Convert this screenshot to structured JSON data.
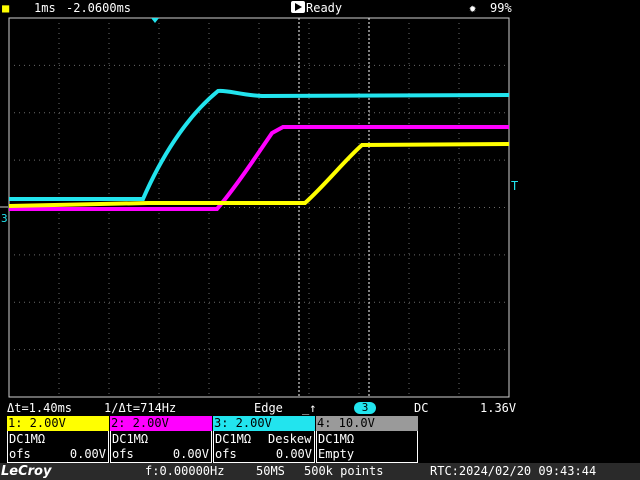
{
  "status": {
    "timebase": "1ms",
    "delay": "-2.0600ms",
    "run_state": "Ready",
    "battery": "99%"
  },
  "measurements": {
    "delta_t": "Δt=1.40ms",
    "freq": "1/Δt=714Hz",
    "trigger_type": "Edge",
    "trigger_source": "3",
    "coupling": "DC",
    "trigger_level": "1.36V"
  },
  "channels": [
    {
      "header": "1: 2.00V",
      "coupling": "DC1MΩ",
      "deskew": "",
      "ofs_label": "ofs",
      "ofs_value": "0.00V",
      "color": "#ffff00"
    },
    {
      "header": "2: 2.00V",
      "coupling": "DC1MΩ",
      "deskew": "",
      "ofs_label": "ofs",
      "ofs_value": "0.00V",
      "color": "#ff00ff"
    },
    {
      "header": "3: 2.00V",
      "coupling": "DC1MΩ",
      "deskew": "Deskew",
      "ofs_label": "ofs",
      "ofs_value": "0.00V",
      "color": "#22e4ee"
    },
    {
      "header": "4: 10.0V",
      "coupling": "DC1MΩ",
      "deskew": "",
      "ofs_label": "",
      "ofs_value": "Empty",
      "color": "#9a9a9a"
    }
  ],
  "footer": {
    "brand": "LeCroy",
    "frequency": "f:0.00000Hz",
    "sample_rate": "50MS",
    "points": "500k points",
    "rtc": "RTC:2024/02/20 09:43:44"
  },
  "markers": {
    "ground": "3",
    "trigger_level": "T"
  },
  "colors": {
    "ch1": "#ffff00",
    "ch2": "#ff00ff",
    "ch3": "#22e4ee",
    "ch4": "#9a9a9a"
  }
}
